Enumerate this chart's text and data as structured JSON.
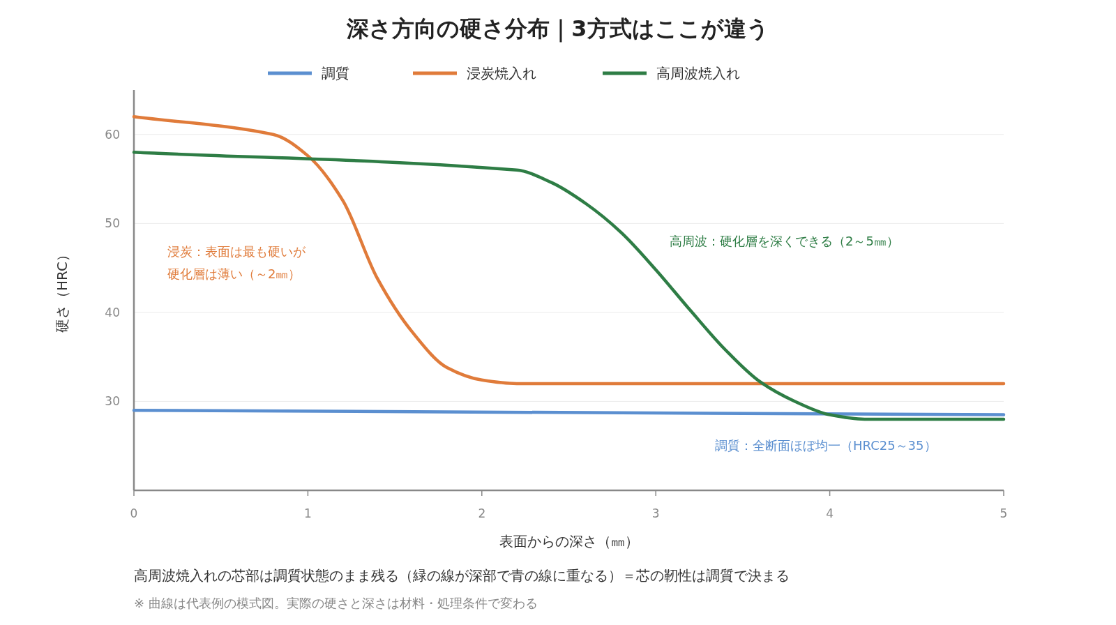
{
  "chart_data": {
    "type": "line",
    "title": "深さ方向の硬さ分布｜3方式はここが違う",
    "xlabel": "表面からの深さ（㎜）",
    "ylabel": "硬さ（HRC）",
    "xlim": [
      0,
      5
    ],
    "xticks": [
      0,
      1,
      2,
      3,
      4,
      5
    ],
    "ylim": [
      20,
      65
    ],
    "yticks": [
      30,
      40,
      50,
      60
    ],
    "grid": "y",
    "legend": "top",
    "marker": "none",
    "line_style": "solid",
    "series": [
      {
        "name": "調質",
        "color": "#5b8fd0",
        "x": [
          0,
          5
        ],
        "values": [
          29,
          28.5
        ]
      },
      {
        "name": "浸炭焼入れ",
        "color": "#e07b3a",
        "x": [
          0,
          0.8,
          1.0,
          1.2,
          1.4,
          1.6,
          1.8,
          2.0,
          2.2,
          5
        ],
        "values": [
          62,
          60,
          57.6,
          52.6,
          43.8,
          37.8,
          33.8,
          32.4,
          32,
          32
        ]
      },
      {
        "name": "高周波焼入れ",
        "color": "#2e7d45",
        "x": [
          0,
          2.2,
          2.4,
          2.6,
          2.8,
          3.0,
          3.2,
          3.4,
          3.6,
          3.8,
          4.0,
          4.2,
          5
        ],
        "values": [
          58,
          56,
          54.6,
          52.2,
          49,
          44.8,
          40.2,
          35.8,
          32.2,
          30,
          28.5,
          28,
          28
        ]
      }
    ],
    "annotations": [
      "調質：全断面ほぼ均一（HRC25～35）",
      "浸炭：表面は最も硬いが",
      "硬化層は薄い（～2㎜）",
      "高周波：硬化層を深くできる（2～5㎜）",
      "高周波焼入れの芯部は調質状態のまま残る（緑の線が深部で青の線に重なる）＝芯の靭性は調質で決まる",
      "※ 曲線は代表例の模式図。実際の硬さと深さは材料・処理条件で変わる"
    ]
  }
}
